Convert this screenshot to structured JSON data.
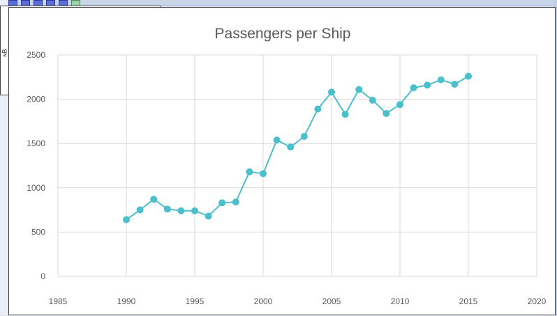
{
  "background": {
    "panel_glyph": "ɴB"
  },
  "chart_data": {
    "type": "line",
    "title": "Passengers per Ship",
    "xlabel": "",
    "ylabel": "",
    "xlim": [
      1985,
      2020
    ],
    "ylim": [
      0,
      2500
    ],
    "x_ticks": [
      1985,
      1990,
      1995,
      2000,
      2005,
      2010,
      2015,
      2020
    ],
    "y_ticks": [
      0,
      500,
      1000,
      1500,
      2000,
      2500
    ],
    "grid": true,
    "legend": "none",
    "series": [
      {
        "color": "#4bbfcc",
        "x": [
          1990,
          1991,
          1992,
          1993,
          1994,
          1995,
          1996,
          1997,
          1998,
          1999,
          2000,
          2001,
          2002,
          2003,
          2004,
          2005,
          2006,
          2007,
          2008,
          2009,
          2010,
          2011,
          2012,
          2013,
          2014,
          2015
        ],
        "y": [
          640,
          750,
          870,
          760,
          740,
          740,
          680,
          830,
          840,
          1180,
          1160,
          1540,
          1460,
          1580,
          1890,
          2080,
          1830,
          2110,
          1990,
          1840,
          1940,
          2130,
          2160,
          2220,
          2170,
          2260
        ]
      }
    ]
  }
}
